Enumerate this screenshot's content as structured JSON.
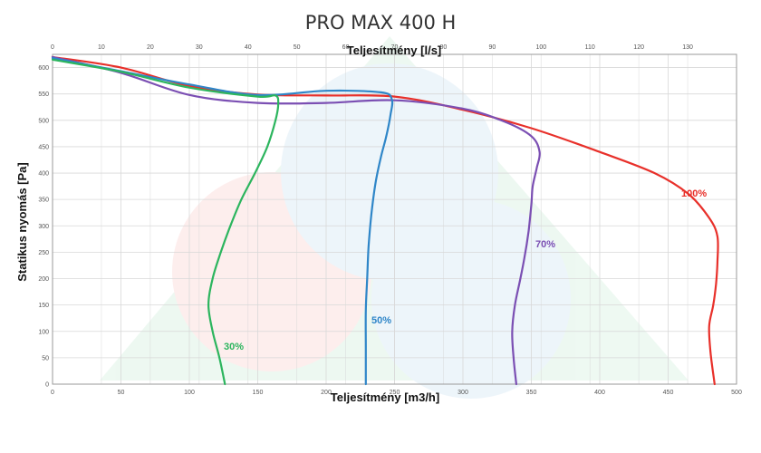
{
  "chart_data": {
    "type": "line",
    "title": "PRO MAX 400 H",
    "xlabel": "Teljesítmény [m3/h]",
    "x2label": "Teljesítmény [l/s]",
    "ylabel": "Statikus nyomás [Pa]",
    "xlim": [
      0,
      500
    ],
    "x2lim": [
      0,
      140
    ],
    "ylim": [
      0,
      625
    ],
    "x_ticks": [
      "0",
      "50",
      "100",
      "150",
      "200",
      "250",
      "300",
      "350",
      "400",
      "450",
      "500"
    ],
    "x2_ticks": [
      "0",
      "10",
      "20",
      "30",
      "40",
      "50",
      "60",
      "70",
      "80",
      "90",
      "100",
      "110",
      "120",
      "130"
    ],
    "y_ticks": [
      "0",
      "50",
      "100",
      "150",
      "200",
      "250",
      "300",
      "350",
      "400",
      "450",
      "500",
      "550",
      "600"
    ],
    "grid": true,
    "series": [
      {
        "name": "100%",
        "color": "#e8302a",
        "points": [
          [
            0,
            620
          ],
          [
            50,
            600
          ],
          [
            100,
            565
          ],
          [
            150,
            549
          ],
          [
            200,
            547
          ],
          [
            250,
            545
          ],
          [
            300,
            520
          ],
          [
            350,
            485
          ],
          [
            400,
            440
          ],
          [
            440,
            400
          ],
          [
            465,
            360
          ],
          [
            480,
            315
          ],
          [
            486,
            280
          ],
          [
            486,
            230
          ],
          [
            485,
            190
          ],
          [
            483,
            150
          ],
          [
            480,
            110
          ],
          [
            481,
            60
          ],
          [
            484,
            0
          ]
        ]
      },
      {
        "name": "70%",
        "color": "#7b4fb3",
        "points": [
          [
            0,
            620
          ],
          [
            50,
            590
          ],
          [
            100,
            548
          ],
          [
            150,
            533
          ],
          [
            200,
            533
          ],
          [
            250,
            538
          ],
          [
            300,
            522
          ],
          [
            330,
            498
          ],
          [
            350,
            470
          ],
          [
            356,
            440
          ],
          [
            354,
            410
          ],
          [
            351,
            375
          ],
          [
            350,
            340
          ],
          [
            348,
            290
          ],
          [
            345,
            240
          ],
          [
            342,
            200
          ],
          [
            338,
            150
          ],
          [
            336,
            100
          ],
          [
            337,
            50
          ],
          [
            339,
            0
          ]
        ]
      },
      {
        "name": "50%",
        "color": "#2f86c8",
        "points": [
          [
            0,
            618
          ],
          [
            50,
            593
          ],
          [
            100,
            568
          ],
          [
            150,
            548
          ],
          [
            200,
            556
          ],
          [
            240,
            553
          ],
          [
            248,
            540
          ],
          [
            247,
            510
          ],
          [
            244,
            470
          ],
          [
            240,
            430
          ],
          [
            236,
            380
          ],
          [
            233,
            320
          ],
          [
            231,
            260
          ],
          [
            230,
            200
          ],
          [
            229,
            140
          ],
          [
            229,
            70
          ],
          [
            229,
            0
          ]
        ]
      },
      {
        "name": "30%",
        "color": "#2cb55e",
        "points": [
          [
            0,
            615
          ],
          [
            50,
            592
          ],
          [
            100,
            562
          ],
          [
            150,
            545
          ],
          [
            163,
            547
          ],
          [
            165,
            530
          ],
          [
            163,
            500
          ],
          [
            157,
            450
          ],
          [
            148,
            400
          ],
          [
            138,
            350
          ],
          [
            130,
            300
          ],
          [
            123,
            250
          ],
          [
            117,
            200
          ],
          [
            114,
            150
          ],
          [
            117,
            100
          ],
          [
            122,
            50
          ],
          [
            126,
            0
          ]
        ]
      }
    ],
    "annotations": [
      {
        "text": "100%",
        "series": "100%",
        "color": "#e8302a"
      },
      {
        "text": "70%",
        "series": "70%",
        "color": "#7b4fb3"
      },
      {
        "text": "50%",
        "series": "50%",
        "color": "#2f86c8"
      },
      {
        "text": "30%",
        "series": "30%",
        "color": "#2cb55e"
      }
    ]
  }
}
